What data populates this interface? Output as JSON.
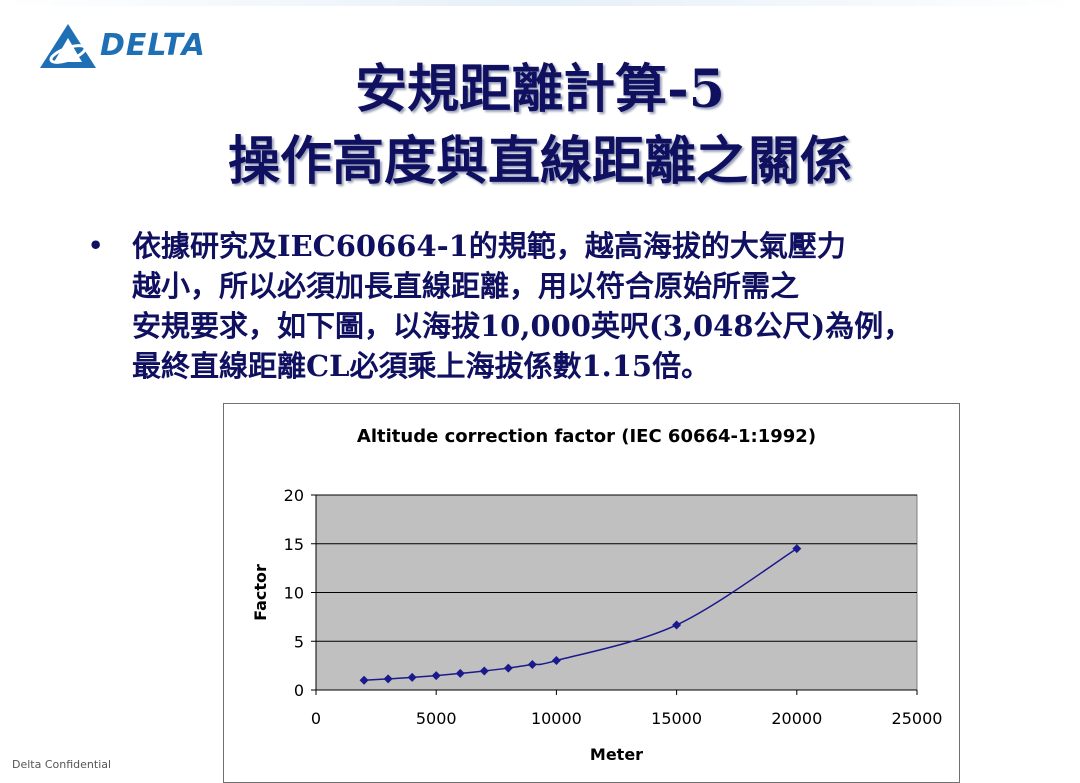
{
  "logo": {
    "text": "DELTA",
    "icon": "delta-triangle-logo-icon",
    "color": "#1e6fb4"
  },
  "title": {
    "line1": "安規距離計算-5",
    "line2": "操作高度與直線距離之關係"
  },
  "bullet": {
    "lines": [
      "依據研究及IEC60664-1的規範，越高海拔的大氣壓力",
      "越小，所以必須加長直線距離，用以符合原始所需之",
      "安規要求，如下圖，以海拔10,000英呎(3,048公尺)為例，",
      "最終直線距離CL必須乘上海拔係數1.15倍。"
    ]
  },
  "footer": {
    "confidential": "Delta Confidential"
  },
  "chart_data": {
    "type": "line",
    "title": "Altitude correction factor (IEC 60664-1:1992)",
    "xlabel": "Meter",
    "ylabel": "Factor",
    "xlim": [
      0,
      25000
    ],
    "ylim": [
      0,
      20
    ],
    "xticks": [
      0,
      5000,
      10000,
      15000,
      20000,
      25000
    ],
    "yticks": [
      0,
      5,
      10,
      15,
      20
    ],
    "grid": "horizontal",
    "legend": "none",
    "series": [
      {
        "x": [
          2000,
          3000,
          4000,
          5000,
          6000,
          7000,
          8000,
          9000,
          10000,
          15000,
          20000
        ],
        "values": [
          1.0,
          1.14,
          1.29,
          1.48,
          1.7,
          1.95,
          2.25,
          2.62,
          3.02,
          6.67,
          14.5
        ],
        "color": "#1a1a8c"
      }
    ],
    "plot_bg": "#c0c0c0"
  }
}
